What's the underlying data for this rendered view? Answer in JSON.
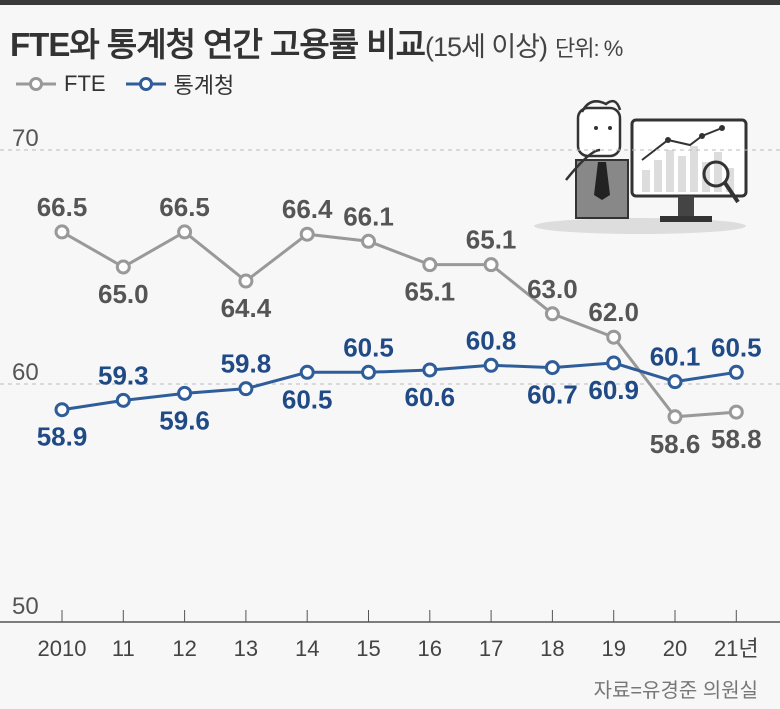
{
  "title": "FTE와 통계청 연간 고용률 비교",
  "subtitle": "(15세 이상)",
  "unit": "단위: %",
  "source": "자료=유경준 의원실",
  "colors": {
    "fte": "#999999",
    "stat": "#2f5d9a",
    "fte_label": "#555555",
    "stat_label": "#1f4a86"
  },
  "chart_data": {
    "type": "line",
    "categories": [
      "2010",
      "11",
      "12",
      "13",
      "14",
      "15",
      "16",
      "17",
      "18",
      "19",
      "20",
      "21년"
    ],
    "ylim": [
      50,
      70
    ],
    "yticks": [
      "50",
      "60",
      "70"
    ],
    "grid": "dashed at 60 and 70",
    "legend": "top-left",
    "series": [
      {
        "name": "FTE",
        "values": [
          66.5,
          65.0,
          66.5,
          64.4,
          66.4,
          66.1,
          65.1,
          65.1,
          63.0,
          62.0,
          58.6,
          58.8
        ],
        "labels": [
          "66.5",
          "65.0",
          "66.5",
          "64.4",
          "66.4",
          "66.1",
          "65.1",
          "65.1",
          "63.0",
          "62.0",
          "58.6",
          "58.8"
        ]
      },
      {
        "name": "통계청",
        "values": [
          58.9,
          59.3,
          59.6,
          59.8,
          60.5,
          60.5,
          60.6,
          60.8,
          60.7,
          60.9,
          60.1,
          60.5
        ],
        "labels": [
          "58.9",
          "59.3",
          "59.6",
          "59.8",
          "60.5",
          "60.5",
          "60.6",
          "60.8",
          "60.7",
          "60.9",
          "60.1",
          "60.5"
        ]
      }
    ]
  }
}
